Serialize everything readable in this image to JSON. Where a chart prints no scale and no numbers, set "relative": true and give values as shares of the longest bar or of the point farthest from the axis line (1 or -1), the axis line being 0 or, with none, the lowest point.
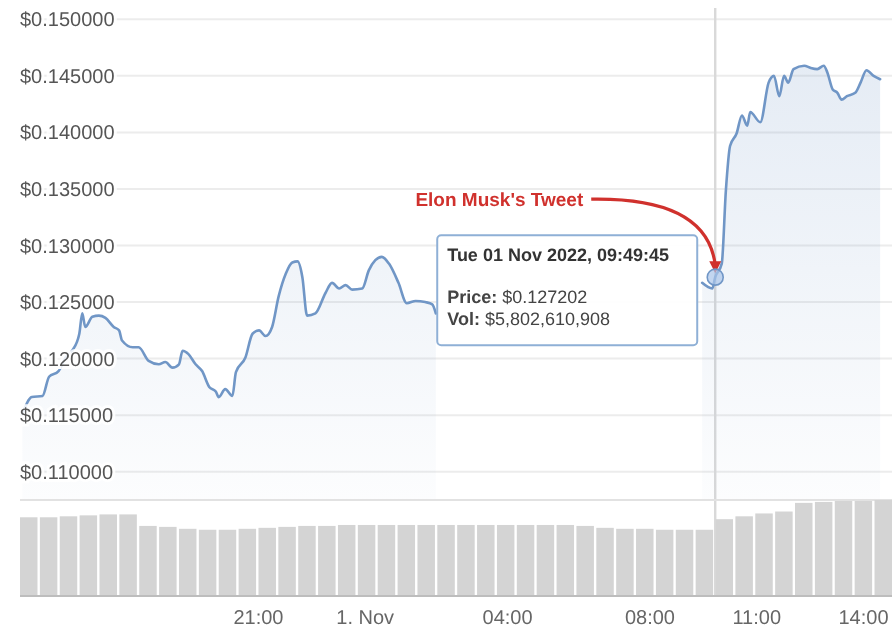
{
  "chart_data": [
    {
      "type": "area",
      "color": "#7096c6",
      "x": [
        "2022-10-31T14:22",
        "2022-10-31T14:38",
        "2022-10-31T14:56",
        "2022-10-31T15:07",
        "2022-10-31T15:23",
        "2022-10-31T15:35",
        "2022-10-31T15:46",
        "2022-10-31T15:58",
        "2022-10-31T16:03",
        "2022-10-31T16:08",
        "2022-10-31T16:20",
        "2022-10-31T16:31",
        "2022-10-31T16:42",
        "2022-10-31T16:56",
        "2022-10-31T17:05",
        "2022-10-31T17:10",
        "2022-10-31T17:28",
        "2022-10-31T17:38",
        "2022-10-31T17:55",
        "2022-10-31T18:12",
        "2022-10-31T18:23",
        "2022-10-31T18:35",
        "2022-10-31T18:46",
        "2022-10-31T18:52",
        "2022-10-31T19:02",
        "2022-10-31T19:14",
        "2022-10-31T19:25",
        "2022-10-31T19:37",
        "2022-10-31T19:48",
        "2022-10-31T19:53",
        "2022-10-31T20:04",
        "2022-10-31T20:16",
        "2022-10-31T20:22",
        "2022-10-31T20:38",
        "2022-10-31T20:50",
        "2022-10-31T21:01",
        "2022-10-31T21:12",
        "2022-10-31T21:23",
        "2022-10-31T21:34",
        "2022-10-31T21:46",
        "2022-10-31T21:57",
        "2022-10-31T22:06",
        "2022-10-31T22:14",
        "2022-10-31T22:22",
        "2022-10-31T22:36",
        "2022-10-31T22:53",
        "2022-10-31T23:04",
        "2022-10-31T23:16",
        "2022-10-31T23:27",
        "2022-10-31T23:38",
        "2022-10-31T23:55",
        "2022-11-01T00:06",
        "2022-11-01T00:17",
        "2022-11-01T00:28",
        "2022-11-01T00:40",
        "2022-11-01T00:56",
        "2022-11-01T01:10",
        "2022-11-01T01:25",
        "2022-11-01T01:41",
        "2022-11-01T01:53",
        "2022-11-01T01:59",
        "2022-11-01T06:00",
        "2022-11-01T09:28",
        "2022-11-01T09:45",
        "2022-11-01T09:50",
        "2022-11-01T10:01",
        "2022-11-01T10:08",
        "2022-11-01T10:15",
        "2022-11-01T10:26",
        "2022-11-01T10:35",
        "2022-11-01T10:44",
        "2022-11-01T10:49",
        "2022-11-01T11:06",
        "2022-11-01T11:20",
        "2022-11-01T11:29",
        "2022-11-01T11:38",
        "2022-11-01T11:46",
        "2022-11-01T11:53",
        "2022-11-01T12:02",
        "2022-11-01T12:20",
        "2022-11-01T12:31",
        "2022-11-01T12:42",
        "2022-11-01T12:53",
        "2022-11-01T12:59",
        "2022-11-01T13:08",
        "2022-11-01T13:16",
        "2022-11-01T13:23",
        "2022-11-01T13:32",
        "2022-11-01T13:46",
        "2022-11-01T13:55",
        "2022-11-01T14:05",
        "2022-11-01T14:17",
        "2022-11-01T14:28"
      ],
      "values": [
        0.1151,
        0.1166,
        0.1167,
        0.1184,
        0.1189,
        0.1201,
        0.1207,
        0.1222,
        0.124,
        0.1228,
        0.1237,
        0.1238,
        0.1236,
        0.1228,
        0.1225,
        0.1216,
        0.121,
        0.121,
        0.1198,
        0.1195,
        0.1197,
        0.1192,
        0.1195,
        0.1207,
        0.1204,
        0.1195,
        0.1189,
        0.1175,
        0.1171,
        0.1166,
        0.1173,
        0.1167,
        0.1188,
        0.1201,
        0.1222,
        0.1225,
        0.122,
        0.1228,
        0.1255,
        0.1275,
        0.1285,
        0.1286,
        0.1272,
        0.1238,
        0.124,
        0.1258,
        0.1267,
        0.1262,
        0.1265,
        0.1261,
        0.1262,
        0.1278,
        0.1287,
        0.129,
        0.1284,
        0.1267,
        0.1249,
        0.1251,
        0.125,
        0.1248,
        0.124,
        null,
        0.1267,
        0.1262,
        0.127202,
        0.1284,
        0.1349,
        0.1388,
        0.1399,
        0.1415,
        0.1406,
        0.1418,
        0.1409,
        0.1444,
        0.145,
        0.1432,
        0.145,
        0.1444,
        0.1456,
        0.1459,
        0.1457,
        0.1456,
        0.1459,
        0.1453,
        0.1438,
        0.1435,
        0.1429,
        0.1432,
        0.1435,
        0.1444,
        0.1455,
        0.145,
        0.1447
      ],
      "xlim": [
        "2022-10-31T14:18",
        "2022-11-01T14:48"
      ],
      "xticks": [
        {
          "value": "2022-10-31T21:00",
          "label": "21:00"
        },
        {
          "value": "2022-11-01T00:00",
          "label": "1. Nov"
        },
        {
          "value": "2022-11-01T04:00",
          "label": "04:00"
        },
        {
          "value": "2022-11-01T08:00",
          "label": "08:00"
        },
        {
          "value": "2022-11-01T11:00",
          "label": "11:00"
        },
        {
          "value": "2022-11-01T14:00",
          "label": "14:00"
        }
      ],
      "ylim": [
        0.1075,
        0.151
      ],
      "yticks": [
        {
          "value": 0.11,
          "label": "$0.110000"
        },
        {
          "value": 0.115,
          "label": "$0.115000"
        },
        {
          "value": 0.12,
          "label": "$0.120000"
        },
        {
          "value": 0.125,
          "label": "$0.125000"
        },
        {
          "value": 0.13,
          "label": "$0.130000"
        },
        {
          "value": 0.135,
          "label": "$0.135000"
        },
        {
          "value": 0.14,
          "label": "$0.140000"
        },
        {
          "value": 0.145,
          "label": "$0.145000"
        },
        {
          "value": 0.15,
          "label": "$0.150000"
        }
      ],
      "grid": "y",
      "ref_lines": [
        {
          "axis": "x",
          "value": "2022-11-01T09:50",
          "color": "#d9d9d9"
        }
      ],
      "annotations": [
        {
          "text": "Elon Musk's Tweet",
          "x": "2022-11-01T09:50",
          "y": 0.127202
        },
        {
          "text": "Tue 01 Nov 2022, 09:49:45",
          "x": "2022-11-01T09:50",
          "y": 0.127202
        },
        "Price: $0.127202",
        "Vol: $5,802,610,908"
      ]
    },
    {
      "type": "bar",
      "relative": true,
      "color": "#d4d4d4",
      "categories": [
        null,
        null,
        null,
        null,
        null,
        null,
        null,
        null,
        null,
        null,
        null,
        null,
        null,
        null,
        null,
        null,
        null,
        null,
        null,
        null,
        null,
        null,
        null,
        null,
        null,
        null,
        null,
        null,
        null,
        null,
        null,
        null,
        null,
        null,
        null,
        null,
        null,
        null,
        null,
        null,
        null,
        null,
        null,
        null
      ],
      "values": [
        0.82,
        0.82,
        0.83,
        0.84,
        0.85,
        0.85,
        0.73,
        0.72,
        0.7,
        0.69,
        0.69,
        0.7,
        0.71,
        0.72,
        0.73,
        0.73,
        0.74,
        0.74,
        0.74,
        0.74,
        0.74,
        0.74,
        0.74,
        0.74,
        0.74,
        0.74,
        0.74,
        0.74,
        0.73,
        0.71,
        0.7,
        0.7,
        0.69,
        0.69,
        0.69,
        0.8,
        0.83,
        0.86,
        0.88,
        0.97,
        0.98,
        0.99,
        0.99,
        1
      ]
    }
  ]
}
